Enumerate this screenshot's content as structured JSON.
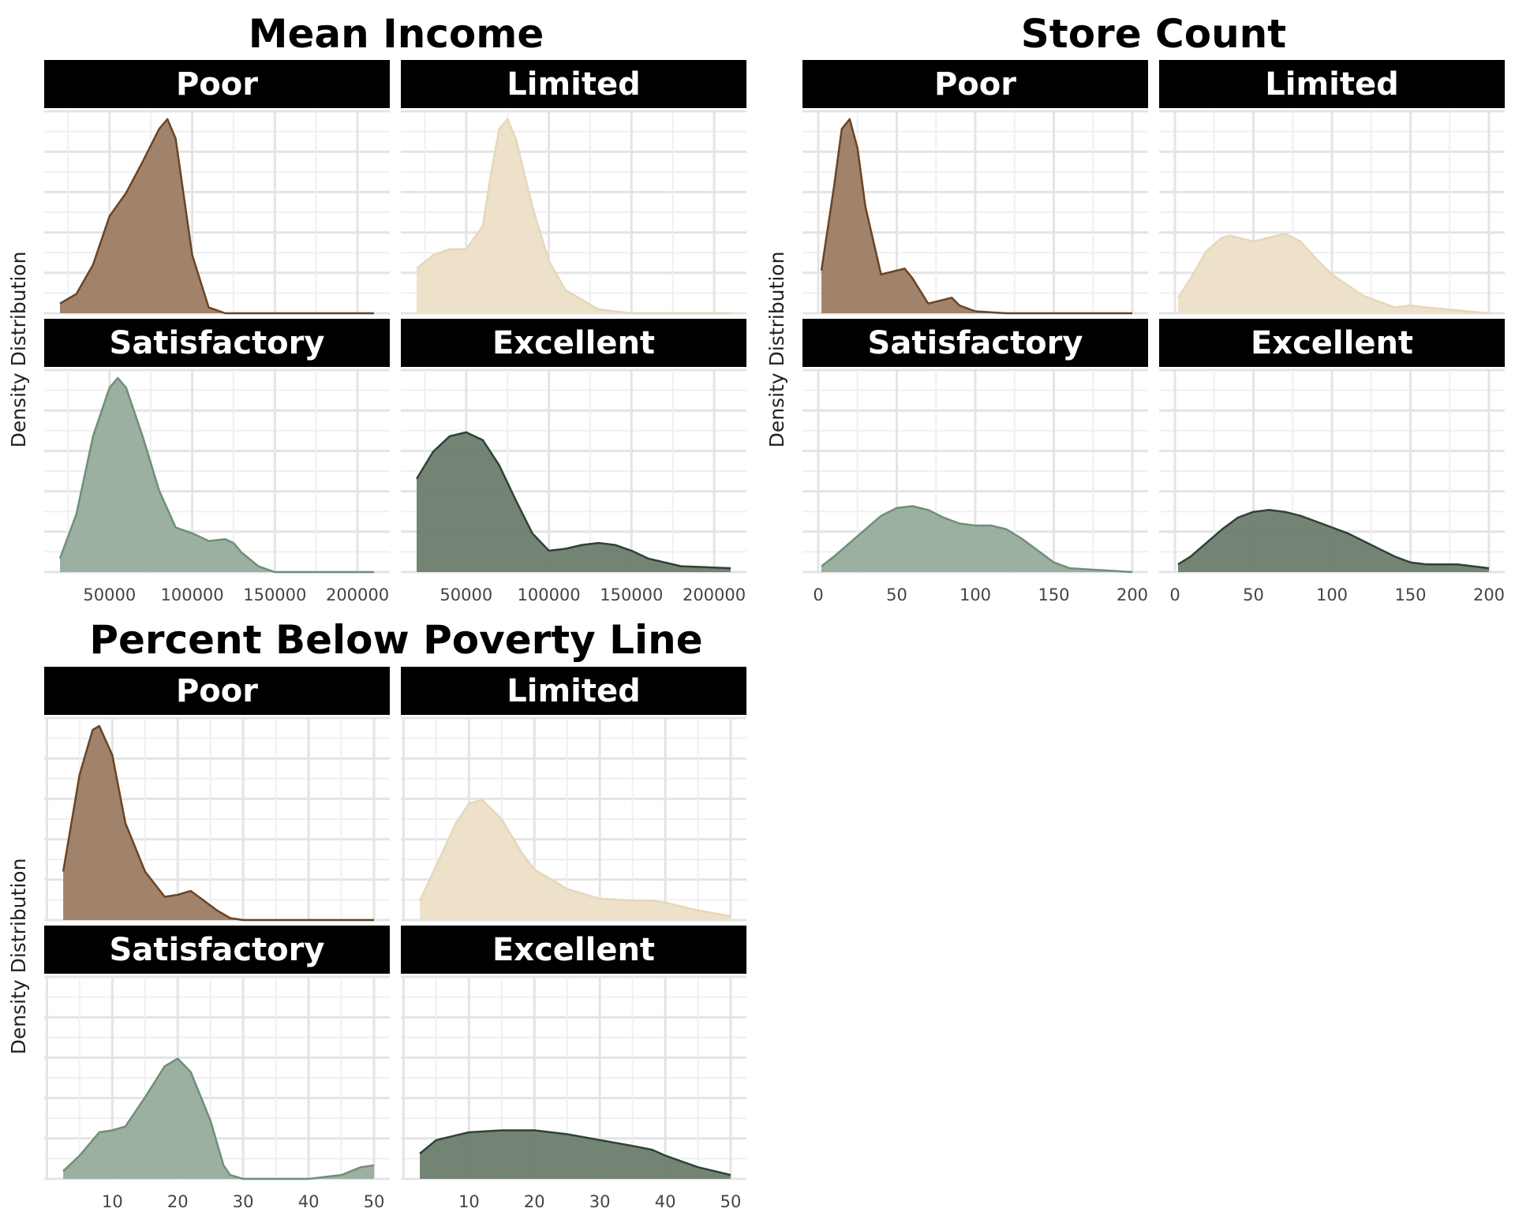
{
  "figure": {
    "ylabel": "Density Distribution",
    "level_colors": {
      "Poor": {
        "fill": "#9c7b63",
        "line": "#6b4423"
      },
      "Limited": {
        "fill": "#ecdfc7",
        "line": "#e6d7bb"
      },
      "Satisfactory": {
        "fill": "#96ac9b",
        "line": "#6f8f7a"
      },
      "Excellent": {
        "fill": "#6b7d6e",
        "line": "#2e4234"
      }
    }
  },
  "chart_data": [
    {
      "type": "area",
      "title": "Mean Income",
      "xlabel": "",
      "ylabel": "Density Distribution",
      "xlim": [
        20000,
        210000
      ],
      "xticks": [
        50000,
        100000,
        150000,
        200000
      ],
      "xtick_labels": [
        "50000",
        "100000",
        "150000",
        "200000"
      ],
      "grid": true,
      "facets": [
        {
          "label": "Poor",
          "ylim": [
            0,
            1
          ],
          "x": [
            20000,
            30000,
            40000,
            50000,
            60000,
            70000,
            80000,
            85000,
            90000,
            95000,
            100000,
            110000,
            120000,
            150000,
            210000
          ],
          "density": [
            0.05,
            0.1,
            0.25,
            0.5,
            0.62,
            0.78,
            0.95,
            1.0,
            0.9,
            0.6,
            0.3,
            0.03,
            0.0,
            0.0,
            0.0
          ]
        },
        {
          "label": "Limited",
          "ylim": [
            0,
            1
          ],
          "x": [
            20000,
            30000,
            40000,
            50000,
            60000,
            65000,
            70000,
            75000,
            80000,
            90000,
            100000,
            110000,
            130000,
            150000,
            210000
          ],
          "density": [
            0.23,
            0.3,
            0.33,
            0.33,
            0.45,
            0.72,
            0.95,
            1.0,
            0.9,
            0.55,
            0.27,
            0.12,
            0.02,
            0.0,
            0.0
          ]
        },
        {
          "label": "Satisfactory",
          "ylim": [
            0,
            1
          ],
          "x": [
            20000,
            30000,
            40000,
            50000,
            55000,
            60000,
            70000,
            80000,
            90000,
            100000,
            110000,
            120000,
            125000,
            130000,
            140000,
            150000,
            210000
          ],
          "density": [
            0.07,
            0.3,
            0.7,
            0.95,
            1.0,
            0.95,
            0.7,
            0.42,
            0.23,
            0.2,
            0.16,
            0.17,
            0.15,
            0.1,
            0.03,
            0.0,
            0.0
          ]
        },
        {
          "label": "Excellent",
          "ylim": [
            0,
            1
          ],
          "x": [
            20000,
            30000,
            40000,
            50000,
            60000,
            70000,
            80000,
            90000,
            100000,
            110000,
            120000,
            130000,
            140000,
            150000,
            160000,
            180000,
            210000
          ],
          "density": [
            0.48,
            0.62,
            0.7,
            0.72,
            0.68,
            0.55,
            0.37,
            0.2,
            0.11,
            0.12,
            0.14,
            0.15,
            0.14,
            0.11,
            0.07,
            0.03,
            0.02
          ]
        }
      ]
    },
    {
      "type": "area",
      "title": "Store Count",
      "xlabel": "",
      "ylabel": "Density Distribution",
      "xlim": [
        0,
        200
      ],
      "xticks": [
        0,
        50,
        100,
        150,
        200
      ],
      "xtick_labels": [
        "0",
        "50",
        "100",
        "150",
        "200"
      ],
      "grid": true,
      "facets": [
        {
          "label": "Poor",
          "ylim": [
            0,
            1
          ],
          "x": [
            2,
            10,
            15,
            20,
            25,
            30,
            40,
            50,
            55,
            60,
            70,
            80,
            85,
            90,
            100,
            120,
            200
          ],
          "density": [
            0.22,
            0.65,
            0.95,
            1.0,
            0.85,
            0.55,
            0.2,
            0.22,
            0.23,
            0.18,
            0.05,
            0.07,
            0.08,
            0.04,
            0.01,
            0.0,
            0.0
          ]
        },
        {
          "label": "Limited",
          "ylim": [
            0,
            1
          ],
          "x": [
            2,
            10,
            20,
            30,
            35,
            40,
            50,
            60,
            70,
            80,
            90,
            100,
            120,
            140,
            150,
            160,
            200
          ],
          "density": [
            0.08,
            0.18,
            0.32,
            0.39,
            0.4,
            0.39,
            0.37,
            0.39,
            0.41,
            0.37,
            0.28,
            0.2,
            0.09,
            0.03,
            0.04,
            0.03,
            0.0
          ]
        },
        {
          "label": "Satisfactory",
          "ylim": [
            0,
            1
          ],
          "x": [
            2,
            10,
            20,
            30,
            40,
            50,
            60,
            70,
            80,
            90,
            100,
            110,
            120,
            130,
            140,
            150,
            160,
            200
          ],
          "density": [
            0.03,
            0.08,
            0.15,
            0.22,
            0.29,
            0.33,
            0.34,
            0.32,
            0.28,
            0.25,
            0.24,
            0.24,
            0.22,
            0.17,
            0.11,
            0.05,
            0.02,
            0.0
          ]
        },
        {
          "label": "Excellent",
          "ylim": [
            0,
            1
          ],
          "x": [
            2,
            10,
            20,
            30,
            40,
            50,
            60,
            70,
            80,
            90,
            100,
            110,
            120,
            130,
            140,
            150,
            160,
            180,
            200
          ],
          "density": [
            0.04,
            0.08,
            0.15,
            0.22,
            0.28,
            0.31,
            0.32,
            0.31,
            0.29,
            0.26,
            0.23,
            0.2,
            0.16,
            0.12,
            0.08,
            0.05,
            0.04,
            0.04,
            0.02
          ]
        }
      ]
    },
    {
      "type": "area",
      "title": "Percent Below Poverty Line",
      "xlabel": "",
      "ylabel": "Density Distribution",
      "xlim": [
        2,
        50
      ],
      "xticks": [
        10,
        20,
        30,
        40,
        50
      ],
      "xtick_labels": [
        "10",
        "20",
        "30",
        "40",
        "50"
      ],
      "grid": true,
      "facets": [
        {
          "label": "Poor",
          "ylim": [
            0,
            1
          ],
          "x": [
            2.5,
            5,
            7,
            8,
            10,
            12,
            15,
            18,
            20,
            22,
            24,
            26,
            28,
            30,
            50
          ],
          "density": [
            0.25,
            0.75,
            0.98,
            1.0,
            0.85,
            0.5,
            0.25,
            0.12,
            0.13,
            0.15,
            0.1,
            0.05,
            0.01,
            0.0,
            0.0
          ]
        },
        {
          "label": "Limited",
          "ylim": [
            0,
            1
          ],
          "x": [
            2.5,
            5,
            8,
            10,
            12,
            15,
            18,
            20,
            25,
            30,
            35,
            38,
            40,
            45,
            50
          ],
          "density": [
            0.1,
            0.28,
            0.5,
            0.6,
            0.62,
            0.52,
            0.35,
            0.26,
            0.16,
            0.11,
            0.1,
            0.1,
            0.09,
            0.05,
            0.02
          ]
        },
        {
          "label": "Satisfactory",
          "ylim": [
            0,
            1
          ],
          "x": [
            2.5,
            5,
            8,
            10,
            12,
            15,
            18,
            20,
            22,
            25,
            27,
            28,
            30,
            40,
            45,
            48,
            50
          ],
          "density": [
            0.04,
            0.12,
            0.24,
            0.25,
            0.27,
            0.42,
            0.58,
            0.62,
            0.55,
            0.3,
            0.07,
            0.02,
            0.0,
            0.0,
            0.02,
            0.06,
            0.07
          ]
        },
        {
          "label": "Excellent",
          "ylim": [
            0,
            1
          ],
          "x": [
            2.5,
            5,
            10,
            15,
            20,
            25,
            30,
            35,
            38,
            40,
            45,
            50
          ],
          "density": [
            0.13,
            0.2,
            0.24,
            0.25,
            0.25,
            0.23,
            0.2,
            0.17,
            0.15,
            0.12,
            0.06,
            0.02
          ]
        }
      ]
    }
  ]
}
